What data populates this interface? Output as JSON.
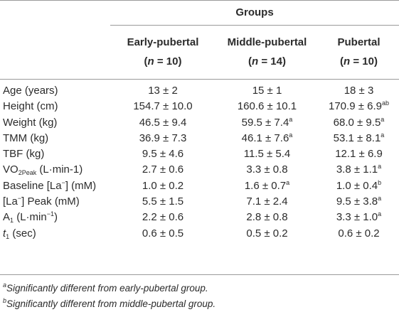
{
  "header": {
    "groups_label": "Groups",
    "columns": [
      {
        "name": "Early-pubertal",
        "n_prefix": "(",
        "n_symbol": "n",
        "n_value": " = 10)"
      },
      {
        "name": "Middle-pubertal",
        "n_prefix": "(",
        "n_symbol": "n",
        "n_value": " = 14)"
      },
      {
        "name": "Pubertal",
        "n_prefix": "(",
        "n_symbol": "n",
        "n_value": " = 10)"
      }
    ]
  },
  "rows": [
    {
      "label": "Age (years)",
      "v1": "13 ± 2",
      "v2": "15 ± 1",
      "v3": "18 ± 3",
      "s1": "",
      "s2": "",
      "s3": ""
    },
    {
      "label": "Height (cm)",
      "v1": "154.7 ± 10.0",
      "v2": "160.6 ± 10.1",
      "v3": "170.9 ± 6.9",
      "s1": "",
      "s2": "",
      "s3": "ab"
    },
    {
      "label": "Weight (kg)",
      "v1": "46.5 ± 9.4",
      "v2": "59.5 ± 7.4",
      "v3": "68.0 ± 9.5",
      "s1": "",
      "s2": "a",
      "s3": "a"
    },
    {
      "label": "TMM (kg)",
      "v1": "36.9 ± 7.3",
      "v2": "46.1 ± 7.6",
      "v3": "53.1 ± 8.1",
      "s1": "",
      "s2": "a",
      "s3": "a"
    },
    {
      "label": "TBF (kg)",
      "v1": "9.5 ± 4.6",
      "v2": "11.5 ± 5.4",
      "v3": "12.1 ± 6.9",
      "s1": "",
      "s2": "",
      "s3": ""
    },
    {
      "label_main": "VO",
      "label_sub": "2Peak",
      "label_rest": " (L·min-1)",
      "v1": "2.7 ± 0.6",
      "v2": "3.3 ± 0.8",
      "v3": "3.8 ± 1.1",
      "s1": "",
      "s2": "",
      "s3": "a"
    },
    {
      "label_main": "Baseline [La",
      "label_sup": "−",
      "label_rest": "] (mM)",
      "v1": "1.0 ± 0.2",
      "v2": "1.6 ± 0.7",
      "v3": "1.0 ± 0.4",
      "s1": "",
      "s2": "a",
      "s3": "b"
    },
    {
      "label_main": "[La",
      "label_sup": "−",
      "label_rest": "] Peak (mM)",
      "v1": "5.5 ± 1.5",
      "v2": "7.1 ± 2.4",
      "v3": "9.5 ± 3.8",
      "s1": "",
      "s2": "",
      "s3": "a"
    },
    {
      "label_main": "A",
      "label_sub": "1",
      "label_rest": " (L·min",
      "label_sup2": "−1",
      "label_end": ")",
      "v1": "2.2 ± 0.6",
      "v2": "2.8 ± 0.8",
      "v3": "3.3 ± 1.0",
      "s1": "",
      "s2": "",
      "s3": "a"
    },
    {
      "label_main": "t",
      "label_sub": "1",
      "label_rest": " (sec)",
      "v1": "0.6 ± 0.5",
      "v2": "0.5 ± 0.2",
      "v3": "0.6 ± 0.2",
      "s1": "",
      "s2": "",
      "s3": ""
    }
  ],
  "notes": [
    {
      "mark": "a",
      "text": "Significantly different from early-pubertal group."
    },
    {
      "mark": "b",
      "text": "Significantly different from middle-pubertal group."
    }
  ]
}
